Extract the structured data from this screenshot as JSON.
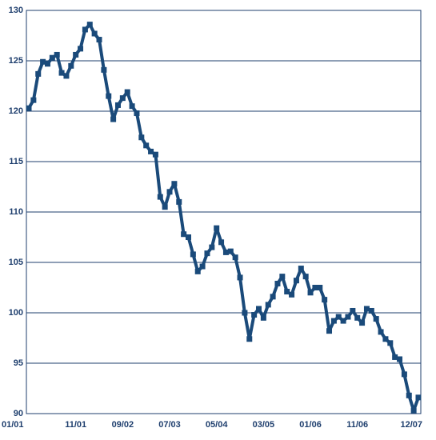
{
  "chart_data": {
    "type": "line",
    "categories": [
      "01/01",
      null,
      null,
      null,
      null,
      null,
      null,
      null,
      null,
      null,
      "11/01",
      null,
      null,
      null,
      null,
      null,
      null,
      null,
      null,
      null,
      "09/02",
      null,
      null,
      null,
      null,
      null,
      null,
      null,
      null,
      null,
      "07/03",
      null,
      null,
      null,
      null,
      null,
      null,
      null,
      null,
      null,
      "05/04",
      null,
      null,
      null,
      null,
      null,
      null,
      null,
      null,
      null,
      "03/05",
      null,
      null,
      null,
      null,
      null,
      null,
      null,
      null,
      null,
      "01/06",
      null,
      null,
      null,
      null,
      null,
      null,
      null,
      null,
      null,
      "11/06",
      null,
      null,
      null,
      null,
      null,
      null,
      null,
      null,
      null,
      null,
      null,
      null,
      "12/07"
    ],
    "series": [
      {
        "color": "#1a4a7a",
        "values": [
          120.3,
          121.1,
          123.7,
          124.9,
          124.7,
          125.3,
          125.6,
          123.8,
          123.5,
          124.5,
          125.6,
          126.2,
          128.1,
          128.6,
          127.7,
          127.1,
          124.1,
          121.5,
          119.2,
          120.6,
          121.3,
          121.9,
          120.5,
          119.8,
          117.4,
          116.6,
          116.0,
          115.7,
          111.5,
          110.5,
          112.0,
          112.8,
          111.0,
          107.8,
          107.5,
          105.8,
          104.1,
          104.6,
          105.9,
          106.5,
          108.4,
          107.0,
          106.0,
          106.1,
          105.5,
          103.5,
          100.0,
          97.4,
          99.8,
          100.4,
          99.5,
          100.8,
          101.6,
          102.9,
          103.6,
          102.1,
          101.8,
          103.2,
          104.4,
          103.6,
          102.0,
          102.5,
          102.5,
          101.3,
          98.2,
          99.2,
          99.6,
          99.2,
          99.6,
          100.2,
          99.5,
          99.0,
          100.4,
          100.2,
          99.4,
          98.1,
          97.4,
          97.0,
          95.6,
          95.4,
          93.9,
          91.8,
          90.3,
          91.6
        ]
      }
    ],
    "ylim": [
      90,
      130
    ],
    "yticks": [
      90,
      95,
      100,
      105,
      110,
      115,
      120,
      125,
      130
    ],
    "grid": true
  }
}
